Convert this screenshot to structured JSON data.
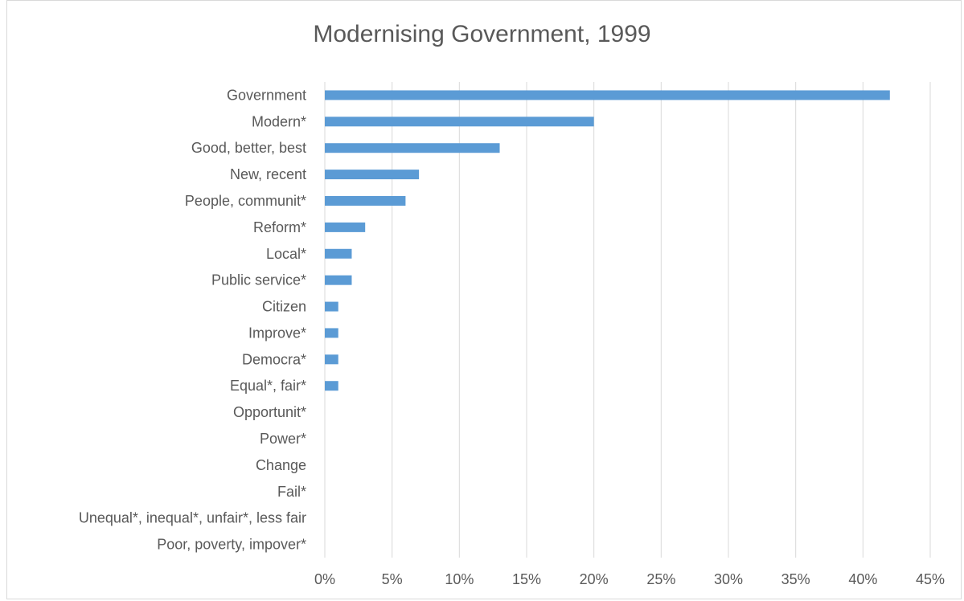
{
  "chart_data": {
    "type": "bar",
    "orientation": "horizontal",
    "title": "Modernising Government, 1999",
    "xlabel": "",
    "ylabel": "",
    "categories": [
      "Government",
      "Modern*",
      "Good, better, best",
      "New, recent",
      "People, communit*",
      "Reform*",
      "Local*",
      "Public service*",
      "Citizen",
      "Improve*",
      "Democra*",
      "Equal*, fair*",
      "Opportunit*",
      "Power*",
      "Change",
      "Fail*",
      "Unequal*, inequal*, unfair*, less fair",
      "Poor, poverty, impover*"
    ],
    "values": [
      42,
      20,
      13,
      7,
      6,
      3,
      2,
      2,
      1,
      1,
      1,
      1,
      0,
      0,
      0,
      0,
      0,
      0
    ],
    "xlim": [
      0,
      45
    ],
    "ticks": [
      0,
      5,
      10,
      15,
      20,
      25,
      30,
      35,
      40,
      45
    ],
    "tick_labels": [
      "0%",
      "5%",
      "10%",
      "15%",
      "20%",
      "25%",
      "30%",
      "35%",
      "40%",
      "45%"
    ],
    "grid": "vertical",
    "legend": "none",
    "colors": {
      "bar": "#5b9bd5",
      "grid": "#d9d9d9",
      "text": "#595959"
    }
  }
}
